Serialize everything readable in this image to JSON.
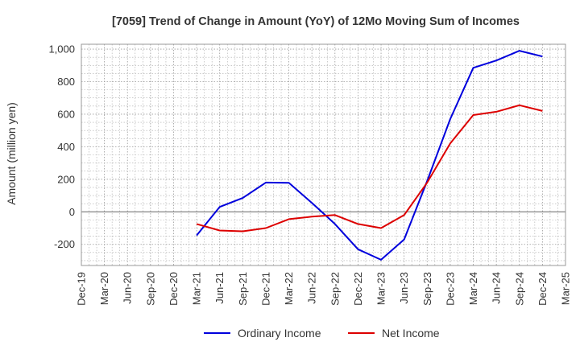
{
  "chart_data": {
    "type": "line",
    "title": "[7059]  Trend of Change in Amount (YoY) of 12Mo Moving Sum of Incomes",
    "xlabel": "",
    "ylabel": "Amount (million yen)",
    "ylim": [
      -330,
      1030
    ],
    "yticks": [
      -200,
      0,
      200,
      400,
      600,
      800,
      1000
    ],
    "ytick_labels": [
      "-200",
      "0",
      "200",
      "400",
      "600",
      "800",
      "1,000"
    ],
    "categories": [
      "Dec-19",
      "Mar-20",
      "Jun-20",
      "Sep-20",
      "Dec-20",
      "Mar-21",
      "Jun-21",
      "Sep-21",
      "Dec-21",
      "Mar-22",
      "Jun-22",
      "Sep-22",
      "Dec-22",
      "Mar-23",
      "Jun-23",
      "Sep-23",
      "Dec-23",
      "Mar-24",
      "Jun-24",
      "Sep-24",
      "Dec-24",
      "Mar-25"
    ],
    "series": [
      {
        "name": "Ordinary Income",
        "color": "#0000dd",
        "values": [
          null,
          null,
          null,
          null,
          null,
          -145,
          30,
          85,
          180,
          178,
          55,
          -75,
          -230,
          -295,
          -170,
          190,
          570,
          885,
          930,
          990,
          955,
          null
        ]
      },
      {
        "name": "Net Income",
        "color": "#dd0000",
        "values": [
          null,
          null,
          null,
          null,
          null,
          -75,
          -115,
          -120,
          -100,
          -45,
          -30,
          -20,
          -75,
          -100,
          -20,
          180,
          420,
          595,
          615,
          655,
          620,
          null
        ]
      }
    ],
    "grid": true,
    "legend": "bottom-center"
  }
}
